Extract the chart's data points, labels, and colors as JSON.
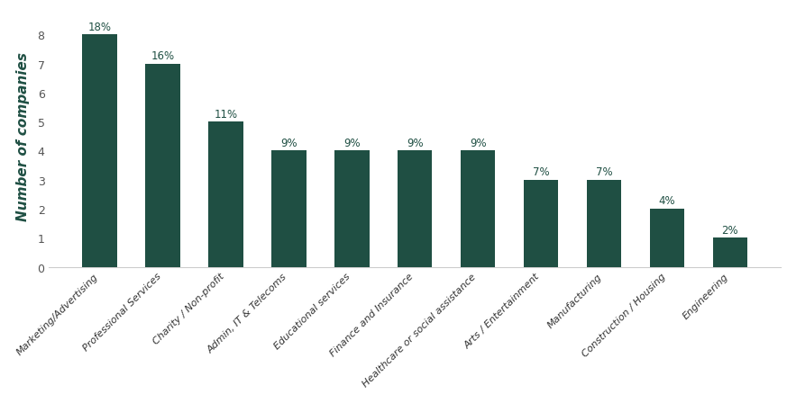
{
  "categories": [
    "Marketing/Advertising",
    "Professional Services",
    "Charity / Non-profit",
    "Admin, IT & Telecoms",
    "Educational services",
    "Finance and Insurance",
    "Healthcare or social assistance",
    "Arts / Entertainment",
    "Manufacturing",
    "Construction / Housing",
    "Engineering"
  ],
  "values": [
    8,
    7,
    5,
    4,
    4,
    4,
    4,
    3,
    3,
    2,
    1
  ],
  "percentages": [
    "18%",
    "16%",
    "11%",
    "9%",
    "9%",
    "9%",
    "9%",
    "7%",
    "7%",
    "4%",
    "2%"
  ],
  "bar_color": "#1f4f43",
  "ylabel": "Number of companies",
  "ylabel_color": "#1f4f43",
  "annotation_color": "#1f4f43",
  "background_color": "#ffffff",
  "ylim": [
    0,
    9
  ],
  "yticks": [
    0,
    1,
    2,
    3,
    4,
    5,
    6,
    7,
    8
  ],
  "bar_width": 0.55,
  "ylabel_fontsize": 11,
  "tick_label_fontsize": 8.0,
  "annotation_fontsize": 8.5,
  "ytick_fontsize": 9
}
